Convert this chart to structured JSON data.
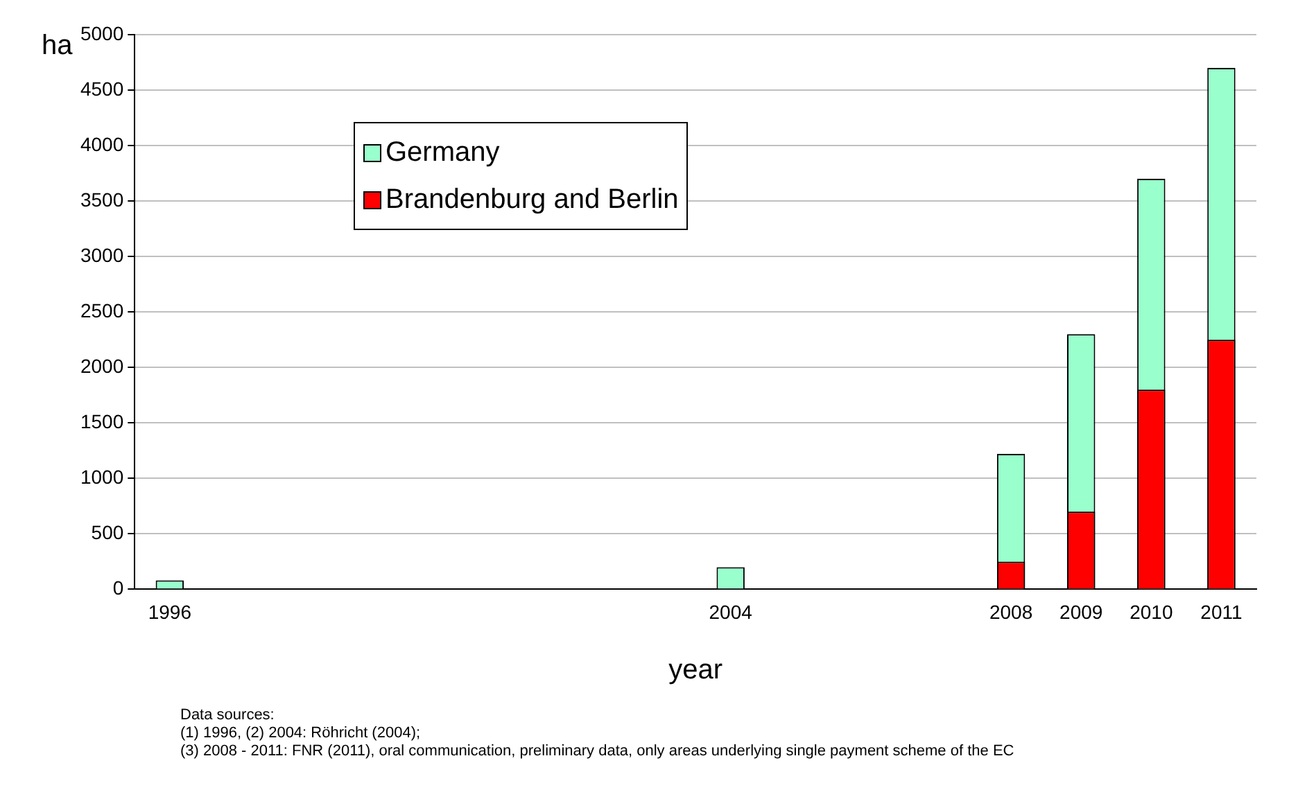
{
  "chart_data": {
    "type": "bar",
    "xlabel": "year",
    "ylabel": "ha",
    "categories": [
      "1996",
      null,
      null,
      null,
      null,
      null,
      null,
      null,
      "2004",
      null,
      null,
      null,
      "2008",
      "2009",
      "2010",
      "2011"
    ],
    "series": [
      {
        "name": "Germany",
        "color": "#99ffcc",
        "values": [
          80,
          null,
          null,
          null,
          null,
          null,
          null,
          null,
          200,
          null,
          null,
          null,
          1220,
          2300,
          3700,
          4700
        ]
      },
      {
        "name": "Brandenburg and Berlin",
        "color": "#ff0000",
        "values": [
          null,
          null,
          null,
          null,
          null,
          null,
          null,
          null,
          null,
          null,
          null,
          null,
          250,
          700,
          1800,
          2250
        ]
      }
    ],
    "ylim": [
      0,
      5000
    ],
    "yticks": [
      0,
      500,
      1000,
      1500,
      2000,
      2500,
      3000,
      3500,
      4000,
      4500,
      5000
    ],
    "grid": "y",
    "legend": "top left",
    "annotations": [
      "Data sources:",
      "(1) 1996, (2) 2004: Röhricht (2004);",
      "(3) 2008 - 2011: FNR (2011), oral communication, preliminary data, only areas underlying single payment scheme of the EC"
    ]
  }
}
